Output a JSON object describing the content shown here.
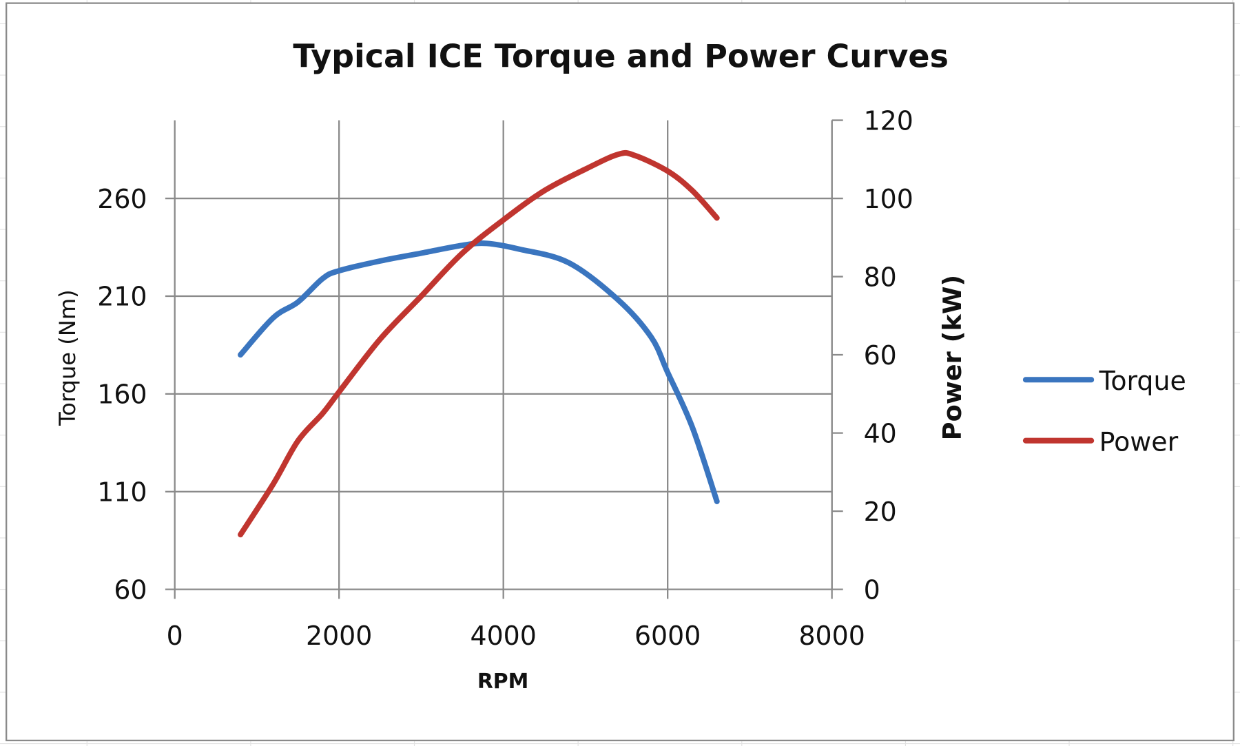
{
  "chart_data": {
    "type": "line",
    "title": "Typical ICE Torque and Power Curves",
    "xlabel": "RPM",
    "ylabel": "Torque (Nm)",
    "y2label": "Power (kW)",
    "xlim": [
      0,
      8000
    ],
    "ylim": [
      60,
      300
    ],
    "y2lim": [
      0,
      120
    ],
    "xticks": [
      "0",
      "2000",
      "4000",
      "6000",
      "8000"
    ],
    "yticks": [
      "60",
      "110",
      "160",
      "210",
      "260"
    ],
    "y2ticks": [
      "0",
      "20",
      "40",
      "60",
      "80",
      "100",
      "120"
    ],
    "grid": true,
    "legend": "right",
    "series": [
      {
        "name": "Torque",
        "axis": "left",
        "color": "#3a75bf",
        "x": [
          800,
          1200,
          1500,
          1800,
          2000,
          2500,
          3000,
          3500,
          3800,
          4200,
          4800,
          5400,
          5800,
          6000,
          6300,
          6600
        ],
        "y": [
          180,
          199,
          207,
          219,
          223,
          228,
          232,
          236,
          237,
          234,
          227,
          208,
          189,
          171,
          143,
          105
        ]
      },
      {
        "name": "Power",
        "axis": "right",
        "color": "#c0352f",
        "x": [
          800,
          1200,
          1500,
          1800,
          2000,
          2500,
          3000,
          3500,
          4000,
          4500,
          5000,
          5400,
          5600,
          6000,
          6300,
          6600
        ],
        "y": [
          14,
          27,
          38,
          45,
          50.5,
          64,
          75,
          86,
          94.5,
          102,
          107.5,
          111.3,
          111,
          107,
          102,
          95
        ]
      }
    ]
  }
}
